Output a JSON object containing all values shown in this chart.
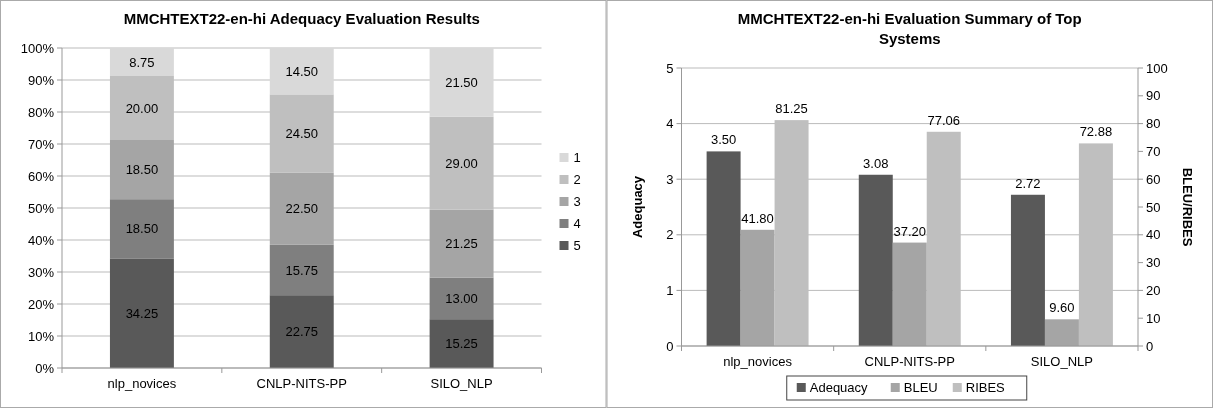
{
  "chart_data": [
    {
      "type": "bar",
      "title": "MMCHTEXT22-en-hi Adequacy Evaluation Results",
      "categories": [
        "nlp_novices",
        "CNLP-NITS-PP",
        "SILO_NLP"
      ],
      "stacked": true,
      "series": [
        {
          "name": "5",
          "color": "#595959",
          "values": [
            34.25,
            22.75,
            15.25
          ],
          "value_labels": [
            "34.25",
            "22.75",
            "15.25"
          ]
        },
        {
          "name": "4",
          "color": "#7f7f7f",
          "values": [
            18.5,
            15.75,
            13.0
          ],
          "value_labels": [
            "18.50",
            "15.75",
            "13.00"
          ]
        },
        {
          "name": "3",
          "color": "#a5a5a5",
          "values": [
            18.5,
            22.5,
            21.25
          ],
          "value_labels": [
            "18.50",
            "22.50",
            "21.25"
          ]
        },
        {
          "name": "2",
          "color": "#bfbfbf",
          "values": [
            20.0,
            24.5,
            29.0
          ],
          "value_labels": [
            "20.00",
            "24.50",
            "29.00"
          ]
        },
        {
          "name": "1",
          "color": "#d9d9d9",
          "values": [
            8.75,
            14.5,
            21.5
          ],
          "value_labels": [
            "8.75",
            "14.50",
            "21.50"
          ]
        }
      ],
      "ylim": [
        0,
        100
      ],
      "yticks": [
        {
          "value": 0,
          "label": "0%"
        },
        {
          "value": 10,
          "label": "10%"
        },
        {
          "value": 20,
          "label": "20%"
        },
        {
          "value": 30,
          "label": "30%"
        },
        {
          "value": 40,
          "label": "40%"
        },
        {
          "value": 50,
          "label": "50%"
        },
        {
          "value": 60,
          "label": "60%"
        },
        {
          "value": 70,
          "label": "70%"
        },
        {
          "value": 80,
          "label": "80%"
        },
        {
          "value": 90,
          "label": "90%"
        },
        {
          "value": 100,
          "label": "100%"
        }
      ],
      "grid": true,
      "legend": "right"
    },
    {
      "type": "bar",
      "title": "MMCHTEXT22-en-hi Evaluation Summary of Top Systems",
      "categories": [
        "nlp_novices",
        "CNLP-NITS-PP",
        "SILO_NLP"
      ],
      "ylabel": "Adequacy",
      "y2label": "BLEU/RIBES",
      "series": [
        {
          "name": "Adequacy",
          "color": "#595959",
          "values": [
            3.5,
            3.08,
            2.72
          ],
          "value_labels": [
            "3.50",
            "3.08",
            "2.72"
          ]
        },
        {
          "name": "BLEU",
          "color": "#a5a5a5",
          "values": [
            41.8,
            37.2,
            9.6
          ],
          "axis": "y2",
          "value_labels": [
            "41.80",
            "37.20",
            "9.60"
          ]
        },
        {
          "name": "RIBES",
          "color": "#bfbfbf",
          "values": [
            81.25,
            77.06,
            72.88
          ],
          "axis": "y2",
          "value_labels": [
            "81.25",
            "77.06",
            "72.88"
          ]
        }
      ],
      "ylim": [
        0,
        5
      ],
      "yticks": [
        0,
        1,
        2,
        3,
        4,
        5
      ],
      "y2lim": [
        0,
        100
      ],
      "y2ticks": [
        0,
        10,
        20,
        30,
        40,
        50,
        60,
        70,
        80,
        90,
        100
      ],
      "grid": true,
      "legend": "bottom"
    }
  ]
}
